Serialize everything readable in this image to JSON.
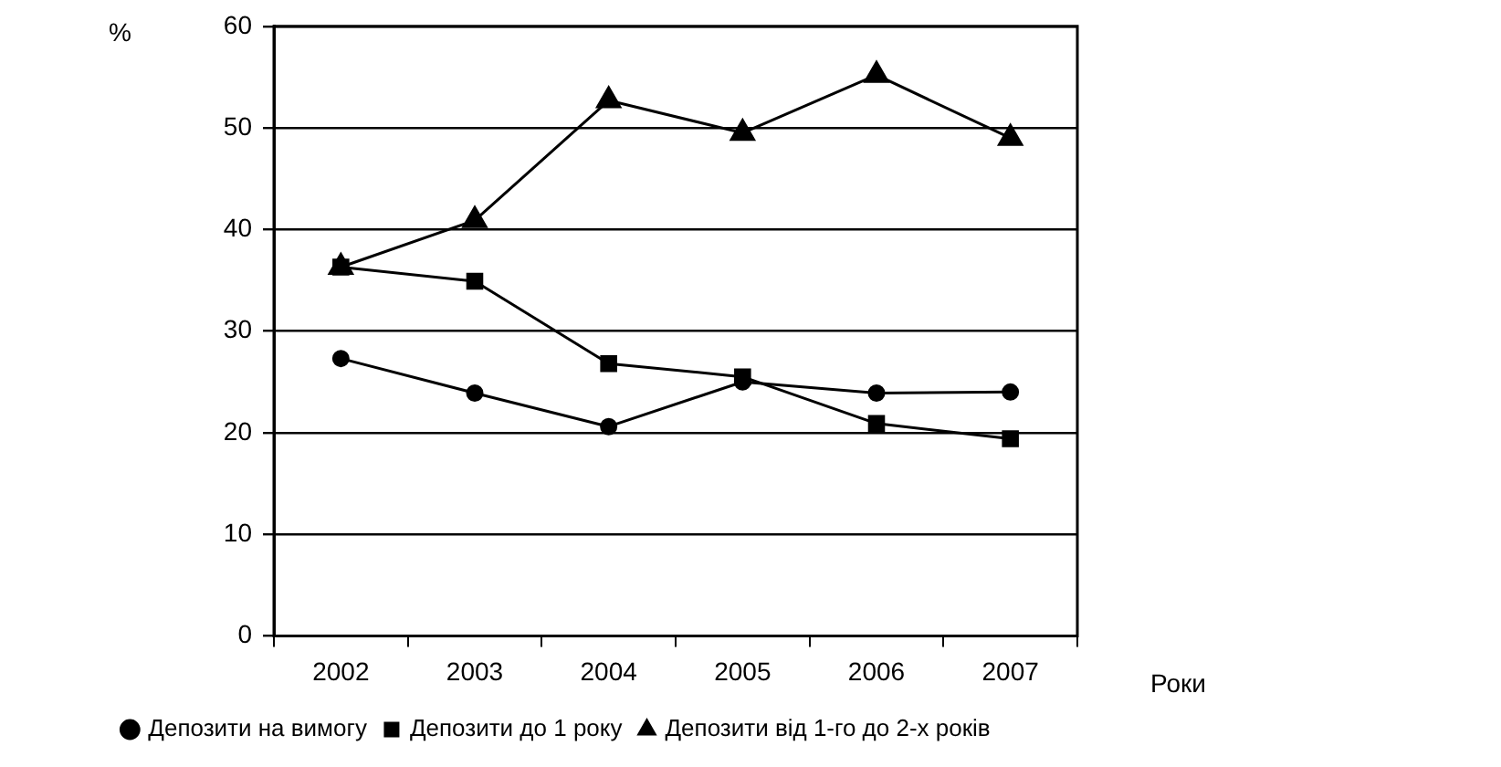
{
  "chart_data": {
    "type": "line",
    "xlabel": "Роки",
    "ylabel": "%",
    "categories": [
      "2002",
      "2003",
      "2004",
      "2005",
      "2006",
      "2007"
    ],
    "ylim": [
      0,
      60
    ],
    "yticks": [
      0,
      10,
      20,
      30,
      40,
      50,
      60
    ],
    "grid": "y",
    "legend": "bottom",
    "line_style": "solid",
    "series": [
      {
        "name": "Депозити на вимогу",
        "color": "#000000",
        "marker": "circle",
        "values": [
          27.3,
          23.9,
          20.6,
          25.0,
          23.9,
          24.0
        ]
      },
      {
        "name": "Депозити до 1 року",
        "color": "#000000",
        "marker": "square",
        "values": [
          36.3,
          34.9,
          26.8,
          25.5,
          20.9,
          19.4
        ]
      },
      {
        "name": "Депозити від 1-го до 2-х років",
        "color": "#000000",
        "marker": "triangle",
        "values": [
          36.3,
          40.9,
          52.7,
          49.5,
          55.2,
          49.0
        ]
      }
    ]
  }
}
